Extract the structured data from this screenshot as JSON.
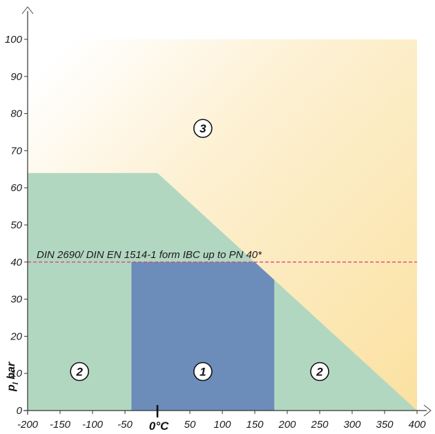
{
  "chart_data": {
    "type": "area",
    "xlim": [
      -200,
      400
    ],
    "ylim": [
      0,
      100
    ],
    "x_ticks": [
      -200,
      -150,
      -100,
      -50,
      50,
      100,
      150,
      200,
      250,
      300,
      350,
      400
    ],
    "y_ticks": [
      0,
      10,
      20,
      30,
      40,
      50,
      60,
      70,
      80,
      90,
      100
    ],
    "xlabel": "0°C",
    "ylabel": "p",
    "ylabel_subscript": "l",
    "ylabel_unit": "bar",
    "grid": false,
    "regions": [
      {
        "name": "3",
        "color": "#fbe5a6",
        "polygon": [
          [
            -200,
            100
          ],
          [
            400,
            100
          ],
          [
            400,
            0
          ],
          [
            -200,
            0
          ]
        ]
      },
      {
        "name": "2",
        "color": "#b2d7c1",
        "polygon": [
          [
            -200,
            0
          ],
          [
            -200,
            64
          ],
          [
            0,
            64
          ],
          [
            400,
            0
          ]
        ]
      },
      {
        "name": "1",
        "color": "#6c8db9",
        "polygon": [
          [
            -40,
            0
          ],
          [
            -40,
            40
          ],
          [
            150,
            40
          ],
          [
            180,
            35.2
          ],
          [
            180,
            0
          ]
        ]
      }
    ],
    "reference_line": {
      "y": 40,
      "label": "DIN 2690/ DIN EN 1514-1 form IBC up to PN 40*",
      "color": "#d9457a"
    },
    "markers": [
      {
        "label": "3",
        "x": 70,
        "y": 76
      },
      {
        "label": "2",
        "x": -120,
        "y": 10.5
      },
      {
        "label": "1",
        "x": 70,
        "y": 10.5
      },
      {
        "label": "2",
        "x": 250,
        "y": 10.5
      }
    ]
  }
}
